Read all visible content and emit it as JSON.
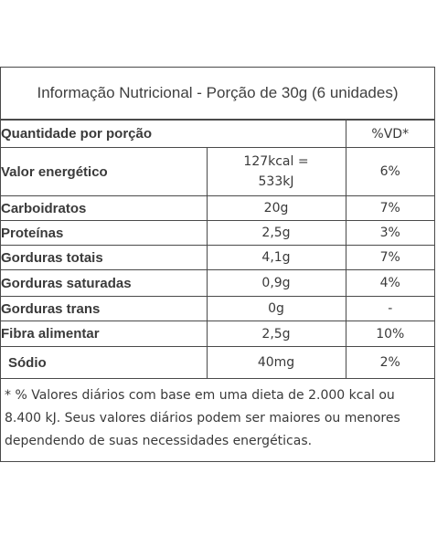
{
  "title": "Informação Nutricional - Porção de 30g (6 unidades)",
  "header": {
    "label": "Quantidade por porção",
    "vd": "%VD*"
  },
  "rows": [
    {
      "name": "Valor energético",
      "amount_line1": "127kcal =",
      "amount_line2": "533kJ",
      "vd": "6%"
    },
    {
      "name": "Carboidratos",
      "amount": "20g",
      "vd": "7%"
    },
    {
      "name": "Proteínas",
      "amount": "2,5g",
      "vd": "3%"
    },
    {
      "name": "Gorduras totais",
      "amount": "4,1g",
      "vd": "7%"
    },
    {
      "name": "Gorduras saturadas",
      "amount": "0,9g",
      "vd": "4%"
    },
    {
      "name": "Gorduras trans",
      "amount": "0g",
      "vd": "-"
    },
    {
      "name": "Fibra alimentar",
      "amount": "2,5g",
      "vd": "10%"
    },
    {
      "name": "Sódio",
      "amount": "40mg",
      "vd": "2%"
    }
  ],
  "footnote": "* % Valores diários com base em uma dieta de 2.000 kcal ou 8.400 kJ. Seus valores diários podem ser maiores ou menores dependendo de suas necessidades energéticas."
}
